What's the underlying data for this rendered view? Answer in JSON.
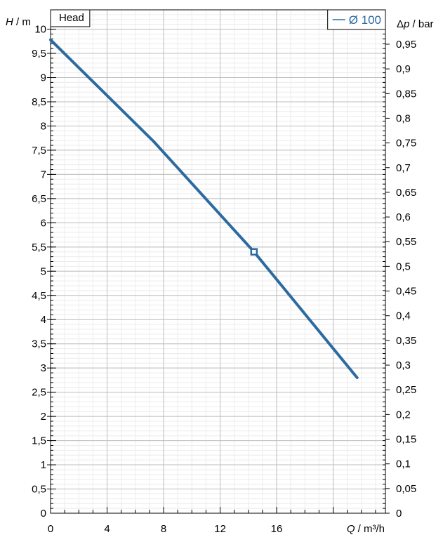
{
  "chart_data": {
    "type": "line",
    "title": "Head",
    "xlabel": {
      "symbol": "Q",
      "unit": " / m³/h"
    },
    "ylabel_left": {
      "symbol": "H",
      "unit": " / m"
    },
    "ylabel_right": {
      "prefix": "Δ",
      "symbol": "p",
      "unit": " / bar"
    },
    "xlim": [
      0,
      23.7
    ],
    "ylim": [
      0,
      10.4
    ],
    "x_ticks": [
      "0",
      "4",
      "8",
      "12",
      "16"
    ],
    "y_ticks": [
      "0",
      "0,5",
      "1",
      "1,5",
      "2",
      "2,5",
      "3",
      "3,5",
      "4",
      "4,5",
      "5",
      "5,5",
      "6",
      "6,5",
      "7",
      "7,5",
      "8",
      "8,5",
      "9",
      "9,5",
      "10"
    ],
    "y_right_ticks": [
      "0",
      "0,05",
      "0,1",
      "0,15",
      "0,2",
      "0,25",
      "0,3",
      "0,35",
      "0,4",
      "0,45",
      "0,5",
      "0,55",
      "0,6",
      "0,65",
      "0,7",
      "0,75",
      "0,8",
      "0,85",
      "0,9",
      "0,95"
    ],
    "grid": true,
    "legend_position": "top-right",
    "series": [
      {
        "name": "Ø 100",
        "color": "#2c6aa0",
        "x": [
          0,
          7.3,
          14.4,
          21.7
        ],
        "y": [
          9.78,
          7.68,
          5.4,
          2.8
        ]
      }
    ],
    "operating_point": {
      "x": 14.4,
      "y": 5.4
    }
  }
}
